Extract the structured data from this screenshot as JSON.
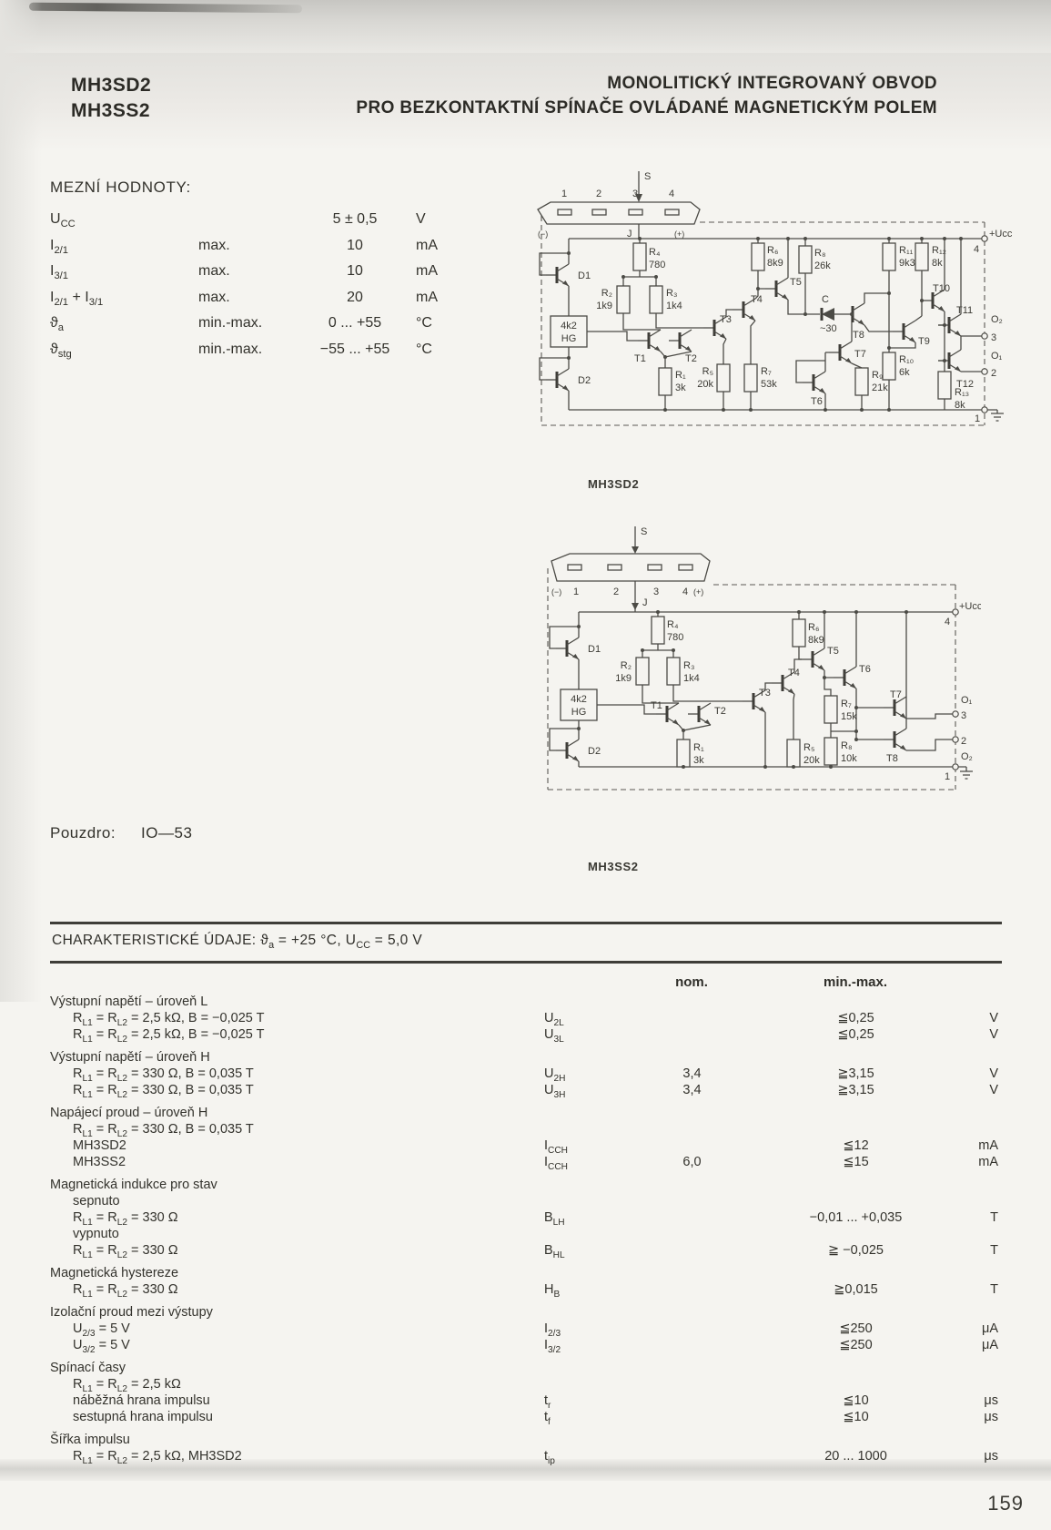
{
  "page": {
    "number": "159"
  },
  "colors": {
    "paper": "#f5f4f0",
    "ink": "#36352f",
    "rule": "#3e3d38"
  },
  "header": {
    "part1": "MH3SD2",
    "part2": "MH3SS2",
    "title_line1": "MONOLITICKÝ INTEGROVANÝ OBVOD",
    "title_line2": "PRO BEZKONTAKTNÍ SPÍNAČE OVLÁDANÉ MAGNETICKÝM POLEM"
  },
  "limits": {
    "title": "MEZNÍ HODNOTY:",
    "rows": [
      {
        "sym": "U_{CC}",
        "cond": "",
        "val": "5 ± 0,5",
        "unit": "V"
      },
      {
        "sym": "I_{2/1}",
        "cond": "max.",
        "val": "10",
        "unit": "mA"
      },
      {
        "sym": "I_{3/1}",
        "cond": "max.",
        "val": "10",
        "unit": "mA"
      },
      {
        "sym": "I_{2/1} + I_{3/1}",
        "cond": "max.",
        "val": "20",
        "unit": "mA"
      },
      {
        "sym": "ϑ_{a}",
        "cond": "min.-max.",
        "val": "0 ... +55",
        "unit": "°C"
      },
      {
        "sym": "ϑ_{stg}",
        "cond": "min.-max.",
        "val": "−55 ... +55",
        "unit": "°C"
      }
    ]
  },
  "package_info": {
    "label": "Pouzdro:",
    "value": "IO—53"
  },
  "schematic1": {
    "caption": "MH3SD2",
    "pin_numbers": [
      "1",
      "2",
      "3",
      "4"
    ],
    "s_label": "S",
    "j_label": "J",
    "minus": "(−)",
    "plus": "(+)",
    "hg_line1": "4k2",
    "hg_line2": "HG",
    "d1": "D1",
    "d2": "D2",
    "t_labels": [
      "T1",
      "T2",
      "T3",
      "T4",
      "T5",
      "T6",
      "T7",
      "T8",
      "T9",
      "T10",
      "T11",
      "T12"
    ],
    "r_names": [
      "R₁",
      "R₂",
      "R₃",
      "R₄",
      "R₅",
      "R₆",
      "R₇",
      "R₈",
      "R₉",
      "R₁₀",
      "R₁₁",
      "R₁₂",
      "R₁₃"
    ],
    "r_values": [
      "3k",
      "1k9",
      "1k4",
      "780",
      "20k",
      "8k9",
      "53k",
      "26k",
      "21k",
      "6k",
      "9k3",
      "8k",
      "8k"
    ],
    "cap_name": "C",
    "cap_value": "~30",
    "out_ucc": "+Ucc",
    "out_ucc_pin": "4",
    "out_o2": "O₂",
    "out_o2_pin": "3",
    "out_o1": "O₁",
    "out_o1_pin": "2",
    "gnd_pin": "1"
  },
  "schematic2": {
    "caption": "MH3SS2",
    "pin_numbers": [
      "1",
      "2",
      "3",
      "4"
    ],
    "s_label": "S",
    "j_label": "J",
    "minus": "(−)",
    "plus": "(+)",
    "hg_line1": "4k2",
    "hg_line2": "HG",
    "d1": "D1",
    "d2": "D2",
    "t_labels": [
      "T1",
      "T2",
      "T3",
      "T4",
      "T5",
      "T6",
      "T7",
      "T8"
    ],
    "r_names": [
      "R₁",
      "R₂",
      "R₃",
      "R₄",
      "R₅",
      "R₆",
      "R₇",
      "R₈"
    ],
    "r_values": [
      "3k",
      "1k9",
      "1k4",
      "780",
      "20k",
      "8k9",
      "15k",
      "10k"
    ],
    "out_ucc": "+Ucc",
    "out_ucc_pin": "4",
    "out_o1": "O₁",
    "out_o1_pin": "3",
    "out_o2": "O₂",
    "out_o2_pin": "2",
    "gnd_pin": "1"
  },
  "char_table": {
    "title": "CHARAKTERISTICKÉ ÚDAJE: ϑ_{a} = +25 °C, U_{CC} = 5,0 V",
    "col_nom": "nom.",
    "col_minmax": "min.-max.",
    "groups": [
      {
        "title": "Výstupní napětí – úroveň L",
        "rows": [
          {
            "cond": "R_{L1} = R_{L2} = 2,5 kΩ, B = −0,025 T",
            "sym": "U_{2L}",
            "nom": "",
            "minmax": "≦0,25",
            "unit": "V"
          },
          {
            "cond": "R_{L1} = R_{L2} = 2,5 kΩ, B = −0,025 T",
            "sym": "U_{3L}",
            "nom": "",
            "minmax": "≦0,25",
            "unit": "V"
          }
        ]
      },
      {
        "title": "Výstupní napětí – úroveň H",
        "rows": [
          {
            "cond": "R_{L1} = R_{L2} = 330 Ω, B = 0,035 T",
            "sym": "U_{2H}",
            "nom": "3,4",
            "minmax": "≧3,15",
            "unit": "V"
          },
          {
            "cond": "R_{L1} = R_{L2} = 330 Ω, B = 0,035 T",
            "sym": "U_{3H}",
            "nom": "3,4",
            "minmax": "≧3,15",
            "unit": "V"
          }
        ]
      },
      {
        "title": "Napájecí proud – úroveň H",
        "rows": [
          {
            "cond": "R_{L1} = R_{L2} = 330 Ω, B = 0,035 T",
            "sym": "",
            "nom": "",
            "minmax": "",
            "unit": ""
          },
          {
            "cond": "MH3SD2",
            "sym": "I_{CCH}",
            "nom": "",
            "minmax": "≦12",
            "unit": "mA"
          },
          {
            "cond": "MH3SS2",
            "sym": "I_{CCH}",
            "nom": "6,0",
            "minmax": "≦15",
            "unit": "mA"
          }
        ]
      },
      {
        "title": "Magnetická indukce pro stav",
        "rows": [
          {
            "cond": "sepnuto",
            "sym": "",
            "nom": "",
            "minmax": "",
            "unit": ""
          },
          {
            "cond": "R_{L1} = R_{L2} = 330 Ω",
            "sym": "B_{LH}",
            "nom": "",
            "minmax": "−0,01 ... +0,035",
            "unit": "T"
          },
          {
            "cond": "vypnuto",
            "sym": "",
            "nom": "",
            "minmax": "",
            "unit": ""
          },
          {
            "cond": "R_{L1} = R_{L2} = 330 Ω",
            "sym": "B_{HL}",
            "nom": "",
            "minmax": "≧ −0,025",
            "unit": "T"
          }
        ]
      },
      {
        "title": "Magnetická hystereze",
        "rows": [
          {
            "cond": "R_{L1} = R_{L2} = 330 Ω",
            "sym": "H_{B}",
            "nom": "",
            "minmax": "≧0,015",
            "unit": "T"
          }
        ]
      },
      {
        "title": "Izolační proud mezi výstupy",
        "rows": [
          {
            "cond": "U_{2/3} = 5 V",
            "sym": "I_{2/3}",
            "nom": "",
            "minmax": "≦250",
            "unit": "μA"
          },
          {
            "cond": "U_{3/2} = 5 V",
            "sym": "I_{3/2}",
            "nom": "",
            "minmax": "≦250",
            "unit": "μA"
          }
        ]
      },
      {
        "title": "Spínací časy",
        "rows": [
          {
            "cond": "R_{L1} = R_{L2} = 2,5 kΩ",
            "sym": "",
            "nom": "",
            "minmax": "",
            "unit": ""
          },
          {
            "cond": "náběžná hrana impulsu",
            "sym": "t_{r}",
            "nom": "",
            "minmax": "≦10",
            "unit": "μs"
          },
          {
            "cond": "sestupná hrana impulsu",
            "sym": "t_{f}",
            "nom": "",
            "minmax": "≦10",
            "unit": "μs"
          }
        ]
      },
      {
        "title": "Šířka impulsu",
        "rows": [
          {
            "cond": "R_{L1} = R_{L2} = 2,5 kΩ, MH3SD2",
            "sym": "t_{ip}",
            "nom": "",
            "minmax": "20 ... 1000",
            "unit": "μs"
          }
        ]
      }
    ]
  }
}
